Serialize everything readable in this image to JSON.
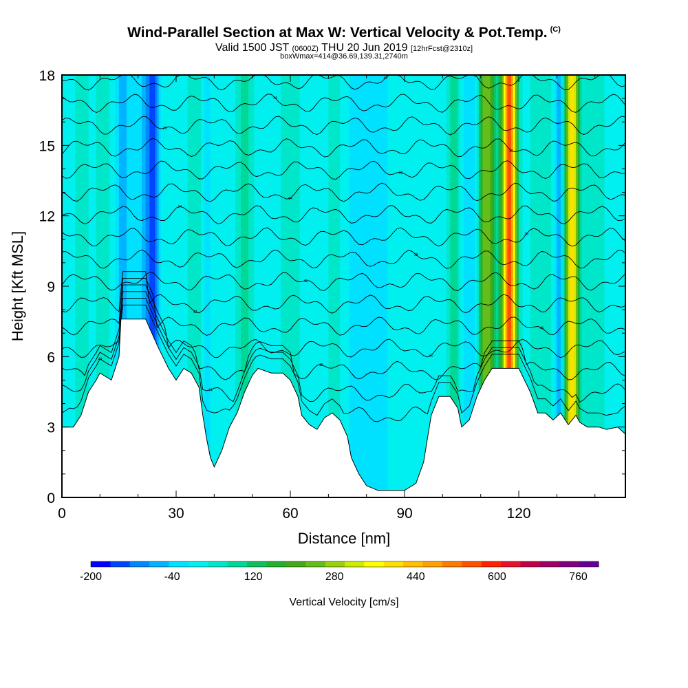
{
  "header": {
    "title": "Wind-Parallel Section at Max W: Vertical Velocity & Pot.Temp.",
    "copyright": "(C)",
    "valid_prefix": "Valid 1500 JST",
    "valid_z": "(0600Z)",
    "valid_date": "THU 20 Jun 2019",
    "forecast": "[12hrFcst@2310z]",
    "boxinfo": "boxWmax=414@36.69,139.31,2740m"
  },
  "chart_data": {
    "type": "heatmap",
    "xlabel": "Distance [nm]",
    "ylabel": "Height [Kft MSL]",
    "xlim": [
      0,
      148
    ],
    "ylim": [
      0,
      18
    ],
    "x_ticks": [
      "0",
      "30",
      "60",
      "90",
      "120"
    ],
    "y_ticks": [
      "0",
      "3",
      "6",
      "9",
      "12",
      "15",
      "18"
    ],
    "terrain_kft": [
      [
        0,
        3
      ],
      [
        3,
        3
      ],
      [
        5,
        3.5
      ],
      [
        7,
        4.5
      ],
      [
        9,
        5
      ],
      [
        10,
        5.3
      ],
      [
        13,
        5
      ],
      [
        15,
        6
      ],
      [
        15.5,
        7.6
      ],
      [
        22,
        7.6
      ],
      [
        25,
        6.5
      ],
      [
        28,
        5.5
      ],
      [
        30,
        5
      ],
      [
        32,
        5.5
      ],
      [
        34,
        5.3
      ],
      [
        36,
        4.7
      ],
      [
        37,
        3.5
      ],
      [
        38,
        2.5
      ],
      [
        39,
        1.7
      ],
      [
        40,
        1.3
      ],
      [
        42,
        2
      ],
      [
        44,
        3
      ],
      [
        46,
        3.6
      ],
      [
        48,
        4.5
      ],
      [
        50,
        5.2
      ],
      [
        51.5,
        5.5
      ],
      [
        55,
        5.3
      ],
      [
        58,
        5.3
      ],
      [
        60,
        5
      ],
      [
        62,
        4.3
      ],
      [
        63,
        3.5
      ],
      [
        65,
        3.1
      ],
      [
        67,
        2.9
      ],
      [
        69,
        3.4
      ],
      [
        71,
        3.6
      ],
      [
        73,
        3.3
      ],
      [
        75,
        2.6
      ],
      [
        76,
        1.7
      ],
      [
        78,
        1
      ],
      [
        80,
        0.5
      ],
      [
        83,
        0.3
      ],
      [
        90,
        0.3
      ],
      [
        93,
        0.6
      ],
      [
        95,
        1.5
      ],
      [
        96,
        2.5
      ],
      [
        97,
        3.5
      ],
      [
        99,
        4.3
      ],
      [
        102,
        4.3
      ],
      [
        104,
        3.8
      ],
      [
        105,
        3
      ],
      [
        107,
        3.3
      ],
      [
        109,
        4.3
      ],
      [
        111,
        5
      ],
      [
        113,
        5.5
      ],
      [
        120,
        5.5
      ],
      [
        123,
        4.5
      ],
      [
        125,
        3.6
      ],
      [
        127,
        3.6
      ],
      [
        129,
        3.3
      ],
      [
        131,
        3.6
      ],
      [
        133,
        3.1
      ],
      [
        134,
        3.3
      ],
      [
        135,
        3.5
      ],
      [
        136,
        3.2
      ],
      [
        138,
        3
      ],
      [
        141,
        3
      ],
      [
        143,
        2.9
      ],
      [
        146,
        3
      ],
      [
        148,
        2.7
      ]
    ],
    "vertical_velocity_cm_s": {
      "background": 10,
      "bands": [
        {
          "x": 24,
          "w": 1.5,
          "value": -110
        },
        {
          "x": 22,
          "w": 2.5,
          "value": -70
        },
        {
          "x": 16,
          "w": 2.0,
          "value": -70
        },
        {
          "x": 38,
          "w": 1.0,
          "value": -60
        },
        {
          "x": 11,
          "w": 2.5,
          "value": 40
        },
        {
          "x": 35,
          "w": 2.5,
          "value": 40
        },
        {
          "x": 5,
          "w": 2.0,
          "value": 40
        },
        {
          "x": 48,
          "w": 2.0,
          "value": 80
        },
        {
          "x": 80,
          "w": 6.0,
          "value": -40
        },
        {
          "x": 72,
          "w": 2.5,
          "value": 40
        },
        {
          "x": 60,
          "w": 3.0,
          "value": 40
        },
        {
          "x": 103,
          "w": 1.5,
          "value": 90
        },
        {
          "x": 111.5,
          "w": 2.5,
          "value": 250
        },
        {
          "x": 117.5,
          "w": 1.8,
          "value": 560
        },
        {
          "x": 134,
          "w": 1.8,
          "value": 380
        },
        {
          "x": 130.5,
          "w": 1.2,
          "value": -90
        },
        {
          "x": 108,
          "w": 2.0,
          "value": -80
        },
        {
          "x": 126,
          "w": 3.5,
          "value": 40
        },
        {
          "x": 140,
          "w": 3.0,
          "value": 40
        }
      ]
    },
    "potential_temperature_contours": {
      "start_height_kft": 3.5,
      "spacing_kft": 0.95,
      "count": 16,
      "labels": [
        "44",
        "44",
        "48",
        "50",
        "46",
        "42",
        "40",
        "38",
        "36",
        "34",
        "34",
        "32",
        "30",
        "29",
        "44",
        "48",
        "44",
        "42",
        "40",
        "38",
        "36",
        "34",
        "32",
        "30",
        "28",
        "32",
        "30",
        "28",
        "26",
        "24",
        "22"
      ]
    },
    "colorbar": {
      "label": "Vertical Velocity [cm/s]",
      "tick_labels": [
        "-200",
        "-40",
        "120",
        "280",
        "440",
        "600",
        "760"
      ],
      "tick_values": [
        -200,
        -40,
        120,
        280,
        440,
        600,
        760
      ],
      "min": -200,
      "max": 800,
      "colors": [
        "#0000ff",
        "#0044ff",
        "#0088ff",
        "#00b4ff",
        "#00e0ff",
        "#00f0f0",
        "#00e6c8",
        "#00d896",
        "#10c060",
        "#22b030",
        "#44a818",
        "#66bc18",
        "#99d010",
        "#ccec00",
        "#ffff00",
        "#ffe000",
        "#ffc000",
        "#ffa000",
        "#ff7800",
        "#ff5000",
        "#ff2200",
        "#e8102a",
        "#c40044",
        "#a00064",
        "#800080",
        "#660099"
      ]
    }
  }
}
